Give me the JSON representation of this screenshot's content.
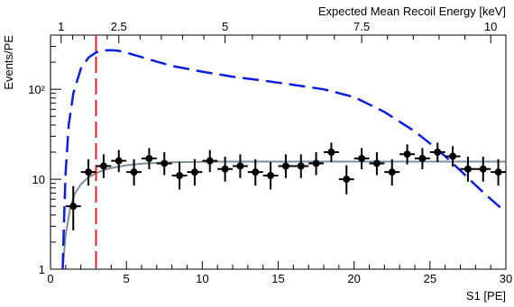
{
  "chart_data": {
    "type": "scatter",
    "title": "",
    "xlabel": "S1 [PE]",
    "ylabel": "Events/PE",
    "top_axis_label": "Expected Mean Recoil Energy [keV]",
    "xlim": [
      0,
      30
    ],
    "ylim": [
      1,
      400
    ],
    "yscale": "log",
    "grid": false,
    "legend": "none",
    "x_ticks": [
      0,
      5,
      10,
      15,
      20,
      25,
      30
    ],
    "x_tick_labels": [
      "0",
      "5",
      "10",
      "15",
      "20",
      "25",
      "30"
    ],
    "y_ticks": [
      1,
      10,
      100
    ],
    "y_tick_labels": [
      "1",
      "10",
      "10²"
    ],
    "top_ticks": [
      {
        "s1": 0.7,
        "label": "1"
      },
      {
        "s1": 4.5,
        "label": "2.5"
      },
      {
        "s1": 11.5,
        "label": "5"
      },
      {
        "s1": 20.5,
        "label": "7.5"
      },
      {
        "s1": 29.0,
        "label": "10"
      }
    ],
    "threshold": {
      "x": 3.0,
      "color": "#e02020"
    },
    "series": [
      {
        "type": "points",
        "color": "#000000",
        "x": [
          1.5,
          2.5,
          3.5,
          4.5,
          5.5,
          6.5,
          7.5,
          8.5,
          9.5,
          10.5,
          11.5,
          12.5,
          13.5,
          14.5,
          15.5,
          16.5,
          17.5,
          18.5,
          19.5,
          20.5,
          21.5,
          22.5,
          23.5,
          24.5,
          25.5,
          26.5,
          27.5,
          28.5,
          29.5
        ],
        "y": [
          5,
          12,
          14,
          16,
          12,
          17,
          15,
          11,
          12,
          16,
          13,
          14,
          12,
          11,
          14,
          14,
          15,
          20,
          10,
          17,
          15,
          12,
          19,
          17,
          20,
          18,
          13,
          13,
          12
        ],
        "yerr_low": [
          2.3,
          3.5,
          3.7,
          4,
          3.5,
          4.1,
          3.9,
          3.3,
          3.5,
          4,
          3.6,
          3.7,
          3.5,
          3.3,
          3.7,
          3.7,
          3.9,
          4.5,
          3.2,
          4.1,
          3.9,
          3.5,
          4.4,
          4.1,
          4.5,
          4.2,
          3.6,
          3.6,
          3.5
        ],
        "yerr_high": [
          3.4,
          4.7,
          4.9,
          5.1,
          4.7,
          5.2,
          5,
          4.5,
          4.7,
          5.1,
          4.8,
          4.9,
          4.7,
          4.5,
          4.9,
          4.9,
          5,
          5.5,
          4.3,
          5.2,
          5,
          4.7,
          5.4,
          5.2,
          5.5,
          5.3,
          4.8,
          4.8,
          4.7
        ],
        "xerr": 0.5
      },
      {
        "type": "line",
        "color": "#7f8f9a",
        "dash": "solid",
        "x": [
          0.8,
          1.0,
          1.3,
          1.6,
          2.0,
          2.5,
          3.0,
          3.5,
          4.0,
          5.0,
          6.0,
          7.0,
          8.0,
          10.0,
          12.0,
          15.0,
          20.0,
          25.0,
          30.0
        ],
        "y": [
          1.0,
          2.4,
          4.8,
          6.9,
          8.8,
          10.5,
          11.7,
          12.6,
          13.3,
          14.3,
          14.9,
          15.2,
          15.4,
          15.6,
          15.7,
          15.7,
          15.7,
          15.7,
          15.7
        ]
      },
      {
        "type": "line",
        "color": "#0a1ee0",
        "dash": "dashed",
        "x": [
          0.8,
          0.9,
          1.0,
          1.2,
          1.5,
          2.0,
          2.5,
          3.0,
          3.5,
          4.0,
          4.5,
          5.0,
          6.0,
          7.0,
          8.0,
          10.0,
          12.0,
          14.0,
          16.0,
          18.0,
          20.0,
          22.0,
          24.0,
          25.0,
          26.0,
          27.0,
          28.0,
          29.0,
          30.0
        ],
        "y": [
          1.0,
          4,
          12,
          40,
          90,
          170,
          225,
          257,
          270,
          272,
          267,
          255,
          228,
          203,
          182,
          157,
          138,
          125,
          112,
          100,
          82,
          56,
          34,
          25,
          18,
          12.5,
          8.6,
          6.0,
          4.3
        ]
      }
    ]
  }
}
